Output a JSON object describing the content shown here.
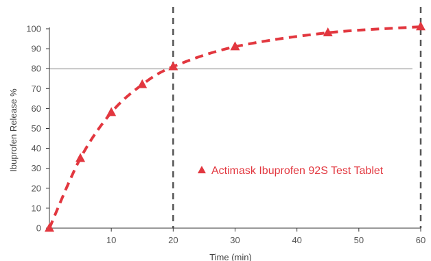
{
  "chart_data": {
    "type": "line",
    "title": "",
    "xlabel": "Time (min)",
    "ylabel": "Ibuprofen Release %",
    "xlim": [
      0,
      60
    ],
    "ylim": [
      0,
      100
    ],
    "x_ticks": [
      "10",
      "20",
      "30",
      "40",
      "50",
      "60"
    ],
    "y_ticks": [
      "0",
      "10",
      "20",
      "30",
      "40",
      "50",
      "60",
      "70",
      "80",
      "90",
      "100"
    ],
    "grid": false,
    "reference_line_y": 80,
    "reference_lines_x": [
      20,
      60
    ],
    "legend_position": "lower-right",
    "series": [
      {
        "name": "Actimask Ibuprofen 92S Test Tablet",
        "color": "#e2373f",
        "marker": "triangle",
        "line_style": "dashed",
        "x": [
          0,
          5,
          10,
          15,
          20,
          30,
          45,
          60
        ],
        "y": [
          0,
          35,
          58,
          72,
          81,
          91,
          98,
          101
        ]
      }
    ]
  }
}
